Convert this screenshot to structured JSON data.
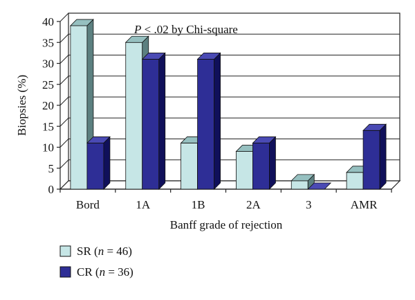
{
  "chart_data": {
    "type": "bar",
    "title": "",
    "annotation": {
      "prefix": "P",
      "text": " < .02 by Chi-square"
    },
    "xlabel": "Banff grade of rejection",
    "ylabel": "Biopsies (%)",
    "ylim": [
      0,
      40
    ],
    "yticks": [
      "0",
      "5",
      "10",
      "15",
      "20",
      "25",
      "30",
      "35",
      "40"
    ],
    "categories": [
      "Bord",
      "1A",
      "1B",
      "2A",
      "3",
      "AMR"
    ],
    "grid": true,
    "legend_position": "bottom-left",
    "series": [
      {
        "name": "SR (n = 46)",
        "label_parts": {
          "pre": "SR (",
          "var": "n",
          "post": " = 46)"
        },
        "values": [
          39,
          35,
          11,
          9,
          2,
          4
        ],
        "colors": {
          "front": "#c6e6e6",
          "side": "#5c8080",
          "top": "#96c0c0"
        }
      },
      {
        "name": "CR (n = 36)",
        "label_parts": {
          "pre": "CR (",
          "var": "n",
          "post": " = 36)"
        },
        "values": [
          11,
          31,
          31,
          11,
          0,
          14
        ],
        "colors": {
          "front": "#2e2e96",
          "side": "#10105a",
          "top": "#4a4ab4"
        }
      }
    ],
    "wall_color": "#ffffff",
    "floor_color": "#ffffff"
  }
}
